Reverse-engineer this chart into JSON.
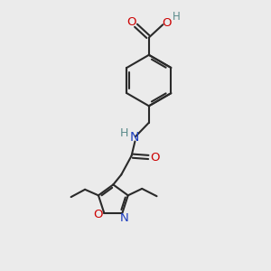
{
  "bg_color": "#ebebeb",
  "bond_color": "#2a2a2a",
  "N_color": "#1e3fbf",
  "O_color": "#cc0000",
  "H_color": "#5a8a8a",
  "figsize": [
    3.0,
    3.0
  ],
  "dpi": 100,
  "xlim": [
    0,
    10
  ],
  "ylim": [
    0,
    10
  ],
  "lw": 1.5
}
